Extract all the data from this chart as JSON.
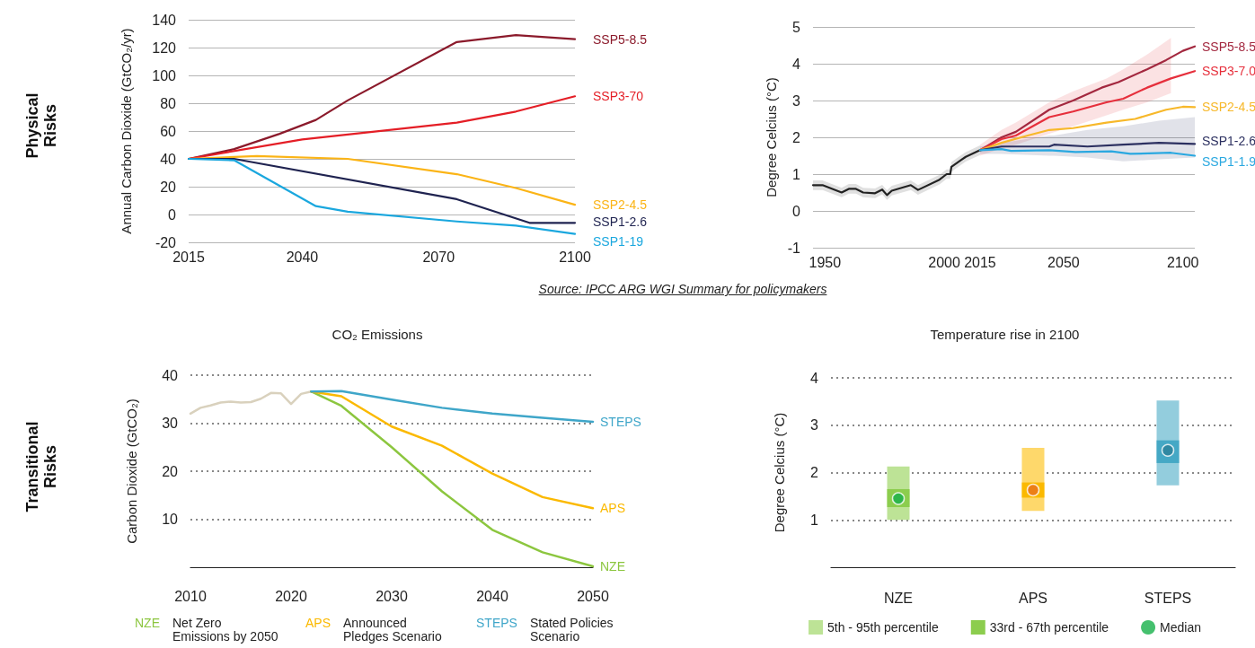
{
  "chart_data": [
    {
      "type": "line",
      "ylabel": "Annual Carbon Dioxide (GtCO₂/yr)",
      "xlim": [
        2015,
        2100
      ],
      "xticks": [
        2015,
        2040,
        2070,
        2100
      ],
      "ylim": [
        -20,
        140
      ],
      "yticks": [
        -20,
        0,
        20,
        40,
        60,
        80,
        100,
        120,
        140
      ],
      "grid": "y",
      "annotations": [
        "Physical Risks",
        "Source: IPCC ARG WGI Summary for policymakers"
      ],
      "series": [
        {
          "name": "SSP5-8.5",
          "color": "#8b1a2b",
          "x": [
            2015,
            2025,
            2035,
            2043,
            2050,
            2074,
            2087,
            2100
          ],
          "values": [
            40,
            47,
            58,
            68,
            82,
            124,
            129,
            126
          ]
        },
        {
          "name": "SSP3-70",
          "color": "#e41e26",
          "x": [
            2015,
            2040,
            2060,
            2074,
            2087,
            2100
          ],
          "values": [
            40,
            54,
            61,
            66,
            74,
            85
          ]
        },
        {
          "name": "SSP2-4.5",
          "color": "#fbb416",
          "x": [
            2015,
            2030,
            2050,
            2074,
            2087,
            2100
          ],
          "values": [
            40,
            42,
            40,
            29,
            19,
            7
          ]
        },
        {
          "name": "SSP1-2.6",
          "color": "#1f2350",
          "x": [
            2015,
            2025,
            2074,
            2090,
            2100
          ],
          "values": [
            40,
            40,
            11,
            -6,
            -6
          ]
        },
        {
          "name": "SSP1-19",
          "color": "#1aa7de",
          "x": [
            2015,
            2025,
            2043,
            2050,
            2074,
            2087,
            2100
          ],
          "values": [
            40,
            39,
            6,
            2,
            -5,
            -8,
            -14
          ]
        }
      ]
    },
    {
      "type": "line",
      "ylabel": "Degree Celcius (°C)",
      "xlim": [
        1945,
        2105
      ],
      "xticks": [
        1950,
        2000,
        2015,
        2050,
        2100
      ],
      "ylim": [
        -1,
        5
      ],
      "yticks": [
        -1,
        0,
        1,
        2,
        3,
        4,
        5
      ],
      "grid": "y",
      "series": [
        {
          "color": "#222222",
          "x": [
            1945,
            1949,
            1957,
            1960,
            1963,
            1966,
            1971,
            1974,
            1976,
            1978,
            1986,
            1989,
            1998,
            2001,
            2002.5,
            2003,
            2007,
            2009,
            2015
          ],
          "values": [
            0.7,
            0.7,
            0.5,
            0.6,
            0.6,
            0.5,
            0.48,
            0.58,
            0.43,
            0.55,
            0.7,
            0.57,
            0.85,
            1.0,
            1.0,
            1.2,
            1.38,
            1.47,
            1.65
          ],
          "lower": [
            0.57,
            0.57,
            0.37,
            0.47,
            0.47,
            0.37,
            0.35,
            0.45,
            0.3,
            0.42,
            0.57,
            0.44,
            0.72,
            0.87,
            0.87,
            1.07,
            1.25,
            1.34,
            1.52
          ],
          "upper": [
            0.83,
            0.83,
            0.63,
            0.73,
            0.73,
            0.63,
            0.61,
            0.71,
            0.56,
            0.68,
            0.83,
            0.7,
            0.98,
            1.13,
            1.13,
            1.33,
            1.51,
            1.6,
            1.78
          ]
        },
        {
          "name": "SSP5-8.5",
          "color": "#a3283f",
          "x": [
            2015,
            2024,
            2030,
            2044,
            2054,
            2066,
            2073,
            2085,
            2093,
            2100,
            2105
          ],
          "values": [
            1.65,
            2.0,
            2.15,
            2.75,
            3.0,
            3.35,
            3.5,
            3.85,
            4.1,
            4.35,
            4.47
          ]
        },
        {
          "name": "SSP3-7.0",
          "color": "#e62f3c",
          "x": [
            2015,
            2024,
            2030,
            2044,
            2054,
            2068,
            2075,
            2085,
            2095,
            2105
          ],
          "values": [
            1.65,
            1.95,
            2.05,
            2.55,
            2.7,
            2.95,
            3.05,
            3.35,
            3.6,
            3.8
          ],
          "lower": [
            1.5,
            1.7,
            1.8,
            2.1,
            2.3,
            2.6,
            2.75,
            2.95,
            3.2,
            null
          ],
          "upper": [
            1.8,
            2.2,
            2.4,
            2.95,
            3.25,
            3.6,
            3.85,
            4.25,
            4.7,
            null
          ]
        },
        {
          "name": "SSP2-4.5",
          "color": "#f7b82a",
          "x": [
            2015,
            2024,
            2035,
            2044,
            2054,
            2068,
            2080,
            2093,
            2100,
            2105
          ],
          "values": [
            1.65,
            1.85,
            2.05,
            2.2,
            2.25,
            2.4,
            2.5,
            2.75,
            2.83,
            2.82
          ]
        },
        {
          "name": "SSP1-2.6",
          "color": "#2c3060",
          "x": [
            2015,
            2024,
            2044,
            2046,
            2060,
            2075,
            2090,
            2105
          ],
          "values": [
            1.65,
            1.75,
            1.75,
            1.8,
            1.75,
            1.8,
            1.85,
            1.82
          ],
          "lower": [
            1.55,
            1.55,
            1.5,
            1.5,
            1.45,
            1.35,
            1.4,
            1.45
          ],
          "upper": [
            1.75,
            1.85,
            2.05,
            2.05,
            2.2,
            2.3,
            2.45,
            2.55
          ]
        },
        {
          "name": "SSP1-1.9",
          "color": "#2aa8e0",
          "x": [
            2015,
            2024,
            2028,
            2044,
            2055,
            2070,
            2078,
            2095,
            2105
          ],
          "values": [
            1.65,
            1.68,
            1.63,
            1.65,
            1.6,
            1.62,
            1.55,
            1.58,
            1.5
          ]
        }
      ]
    },
    {
      "type": "line",
      "title": "CO₂ Emissions",
      "ylabel": "Carbon Dioxide (GtCO₂)",
      "xlim": [
        2010,
        2050
      ],
      "xticks": [
        2010,
        2020,
        2030,
        2040,
        2050
      ],
      "ylim": [
        0,
        40
      ],
      "yticks": [
        10,
        20,
        30,
        40
      ],
      "grid": "y",
      "legend": "bottom",
      "annotations": [
        "Transitional Risks",
        "Net Zero Emissions by 2050",
        "Announced Pledges Scenario",
        "Stated Policies Scenario"
      ],
      "series": [
        {
          "color": "#d9d1bd",
          "x": [
            2010,
            2011,
            2012,
            2013,
            2014,
            2015,
            2016,
            2017,
            2018,
            2019,
            2020,
            2021,
            2022
          ],
          "values": [
            32,
            33.2,
            33.7,
            34.3,
            34.5,
            34.3,
            34.4,
            35.1,
            36.3,
            36.2,
            34,
            36.1,
            36.6
          ]
        },
        {
          "name": "NZE",
          "color": "#8cc63f",
          "x": [
            2022,
            2025,
            2030,
            2035,
            2040,
            2045,
            2050
          ],
          "values": [
            36.6,
            33.6,
            25,
            15.8,
            7.8,
            3.1,
            0.2
          ]
        },
        {
          "name": "APS",
          "color": "#fbb900",
          "x": [
            2022,
            2025,
            2030,
            2035,
            2040,
            2045,
            2050
          ],
          "values": [
            36.6,
            35.6,
            29.3,
            25.3,
            19.5,
            14.6,
            12.3
          ]
        },
        {
          "name": "STEPS",
          "color": "#3fa6c9",
          "x": [
            2022,
            2025,
            2030,
            2035,
            2040,
            2045,
            2050
          ],
          "values": [
            36.6,
            36.7,
            34.9,
            33.2,
            32,
            31.1,
            30.3
          ]
        }
      ]
    },
    {
      "type": "bar",
      "title": "Temperature rise in 2100",
      "ylabel": "Degree Celcius (°C)",
      "categories": [
        "NZE",
        "APS",
        "STEPS"
      ],
      "ylim": [
        0,
        4
      ],
      "yticks": [
        1,
        2,
        3,
        4
      ],
      "grid": "y",
      "legend": "bottom",
      "series": [
        {
          "name": "5th - 95th percentile",
          "color": "#bde396",
          "colors": [
            "#bde396",
            "#fed86b",
            "#93cddd"
          ],
          "base": [
            1.0,
            1.19,
            1.73
          ],
          "values": [
            1.13,
            1.33,
            1.79
          ]
        },
        {
          "name": "33rd - 67th percentile",
          "color": "#8ccd4e",
          "colors": [
            "#8ccd4e",
            "#fbb900",
            "#45a8c5"
          ],
          "base": [
            1.27,
            1.47,
            2.2
          ],
          "values": [
            0.38,
            0.32,
            0.48
          ]
        },
        {
          "name": "Median",
          "type": "scatter",
          "color": "#16b04a",
          "colors": [
            "#16b04a",
            "#e8711b",
            "#2b7f98"
          ],
          "x": [
            "NZE",
            "APS",
            "STEPS"
          ],
          "values": [
            1.45,
            1.63,
            2.47
          ]
        }
      ]
    }
  ]
}
